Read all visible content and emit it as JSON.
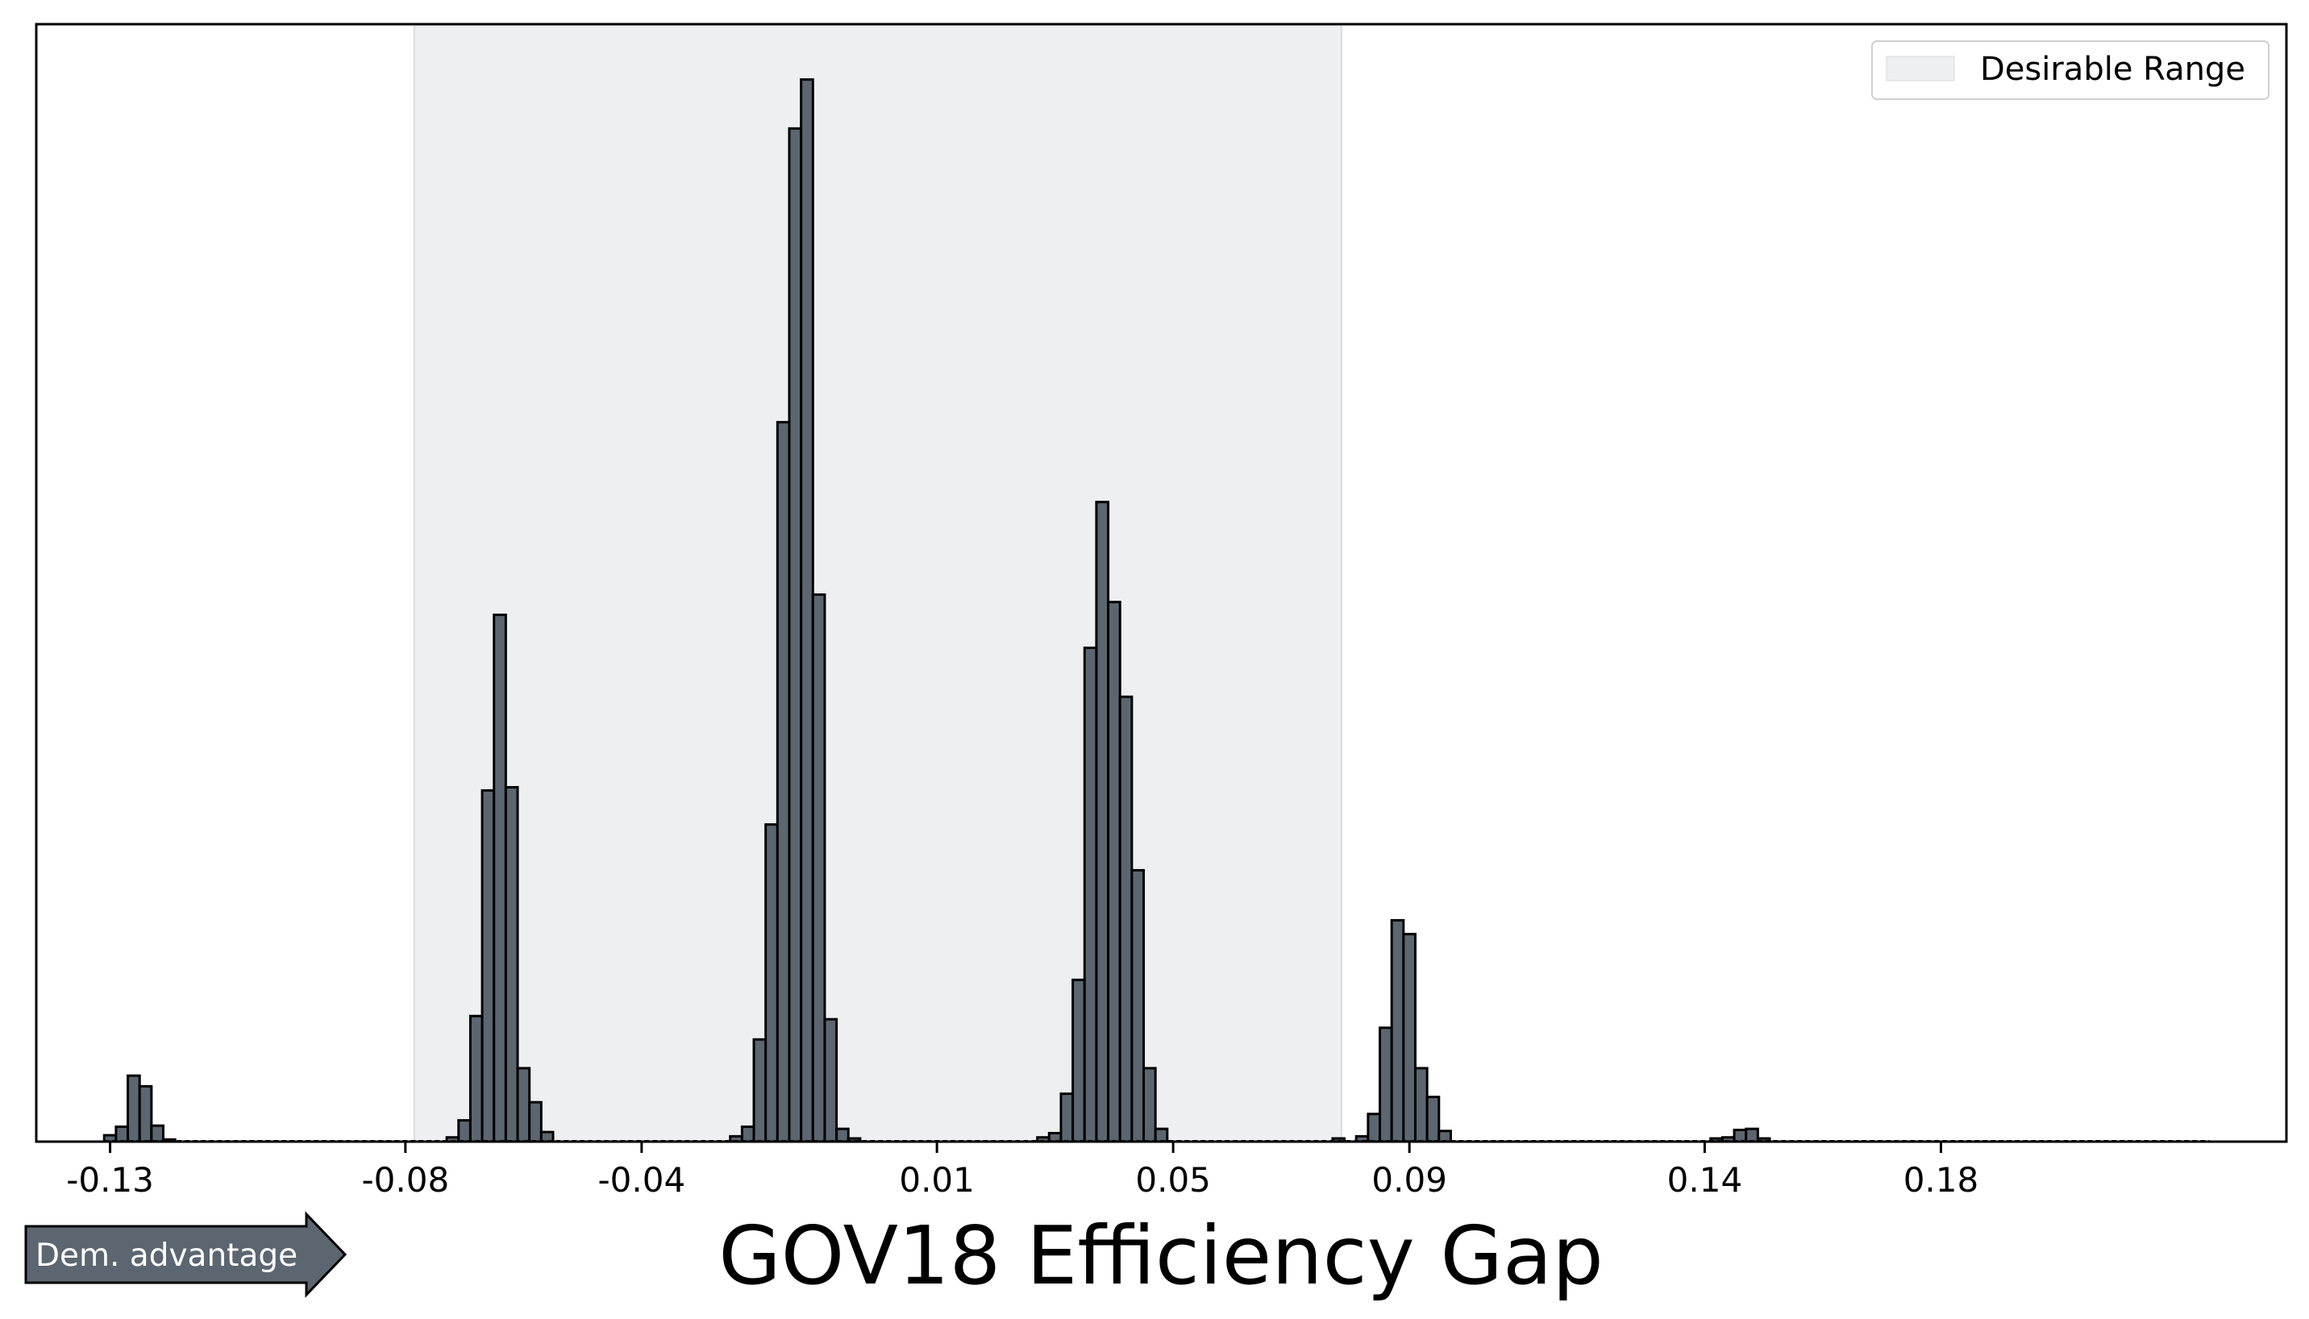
{
  "chart_data": {
    "type": "bar",
    "title": "",
    "xlabel": "GOV18 Efficiency Gap",
    "ylabel": "",
    "xlim": [
      -0.1425,
      0.2385
    ],
    "ylim": [
      0,
      1.05
    ],
    "x_ticks": [
      -0.13,
      -0.08,
      -0.04,
      0.01,
      0.05,
      0.09,
      0.14,
      0.18
    ],
    "x_tick_labels": [
      "-0.13",
      "-0.08",
      "-0.04",
      "0.01",
      "0.05",
      "0.09",
      "0.14",
      "0.18"
    ],
    "bin_width": 0.002,
    "grid": false,
    "legend_position": "top-right",
    "desirable_range": {
      "label": "Desirable Range",
      "x_start": -0.0785,
      "x_end": 0.0785,
      "color": "#eeeff1"
    },
    "bar_color": "#5c6670",
    "bar_edge_color": "#000000",
    "bins": [
      {
        "x": -0.13,
        "h": 0.006
      },
      {
        "x": -0.128,
        "h": 0.014
      },
      {
        "x": -0.126,
        "h": 0.062
      },
      {
        "x": -0.124,
        "h": 0.052
      },
      {
        "x": -0.122,
        "h": 0.015
      },
      {
        "x": -0.12,
        "h": 0.002
      },
      {
        "x": -0.072,
        "h": 0.004
      },
      {
        "x": -0.07,
        "h": 0.02
      },
      {
        "x": -0.068,
        "h": 0.118
      },
      {
        "x": -0.066,
        "h": 0.33
      },
      {
        "x": -0.064,
        "h": 0.495
      },
      {
        "x": -0.062,
        "h": 0.333
      },
      {
        "x": -0.06,
        "h": 0.069
      },
      {
        "x": -0.058,
        "h": 0.037
      },
      {
        "x": -0.056,
        "h": 0.009
      },
      {
        "x": -0.024,
        "h": 0.005
      },
      {
        "x": -0.022,
        "h": 0.014
      },
      {
        "x": -0.02,
        "h": 0.096
      },
      {
        "x": -0.018,
        "h": 0.298
      },
      {
        "x": -0.016,
        "h": 0.676
      },
      {
        "x": -0.014,
        "h": 0.952
      },
      {
        "x": -0.012,
        "h": 0.998
      },
      {
        "x": -0.01,
        "h": 0.514
      },
      {
        "x": -0.008,
        "h": 0.115
      },
      {
        "x": -0.006,
        "h": 0.012
      },
      {
        "x": -0.004,
        "h": 0.003
      },
      {
        "x": 0.028,
        "h": 0.004
      },
      {
        "x": 0.03,
        "h": 0.008
      },
      {
        "x": 0.032,
        "h": 0.045
      },
      {
        "x": 0.034,
        "h": 0.152
      },
      {
        "x": 0.036,
        "h": 0.464
      },
      {
        "x": 0.038,
        "h": 0.601
      },
      {
        "x": 0.04,
        "h": 0.507
      },
      {
        "x": 0.042,
        "h": 0.418
      },
      {
        "x": 0.044,
        "h": 0.255
      },
      {
        "x": 0.046,
        "h": 0.069
      },
      {
        "x": 0.048,
        "h": 0.012
      },
      {
        "x": 0.078,
        "h": 0.003
      },
      {
        "x": 0.082,
        "h": 0.005
      },
      {
        "x": 0.084,
        "h": 0.026
      },
      {
        "x": 0.086,
        "h": 0.107
      },
      {
        "x": 0.088,
        "h": 0.208
      },
      {
        "x": 0.09,
        "h": 0.195
      },
      {
        "x": 0.092,
        "h": 0.069
      },
      {
        "x": 0.094,
        "h": 0.042
      },
      {
        "x": 0.096,
        "h": 0.01
      },
      {
        "x": 0.142,
        "h": 0.003
      },
      {
        "x": 0.144,
        "h": 0.004
      },
      {
        "x": 0.146,
        "h": 0.011
      },
      {
        "x": 0.148,
        "h": 0.012
      },
      {
        "x": 0.15,
        "h": 0.003
      }
    ],
    "annotation": {
      "text": "Dem. advantage",
      "color": "#5c6670"
    }
  }
}
